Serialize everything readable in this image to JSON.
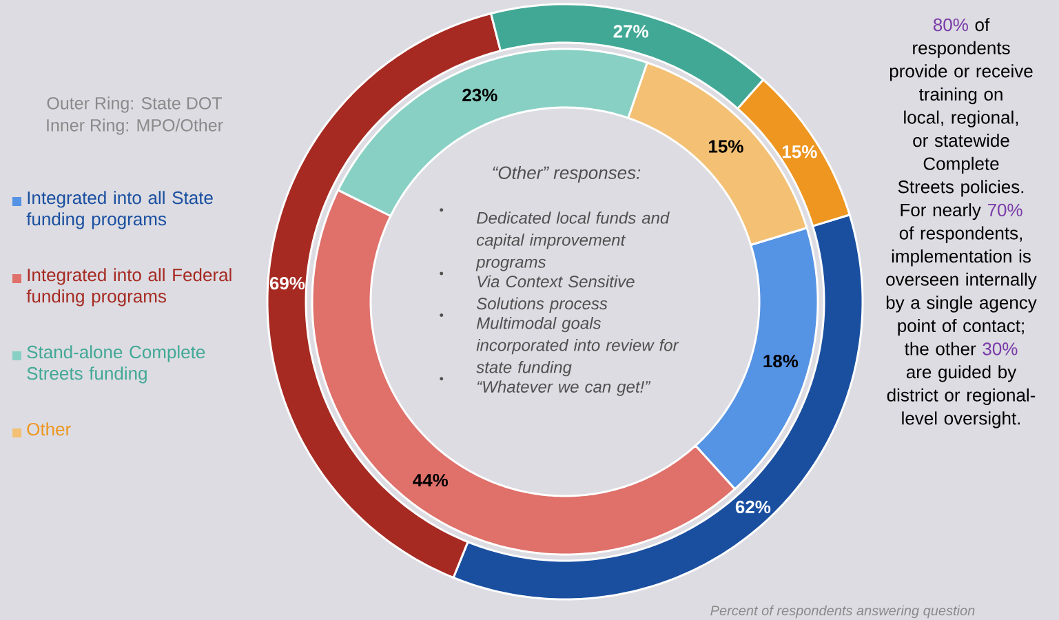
{
  "chart_data": {
    "type": "donut",
    "categories": [
      "Integrated into all State funding programs",
      "Integrated into all Federal funding programs",
      "Stand-alone Complete Streets funding",
      "Other"
    ],
    "series": [
      {
        "values": [
          62,
          69,
          27,
          15
        ],
        "colors": [
          "#1a4fa0",
          "#a62a22",
          "#42a896",
          "#ee9620"
        ],
        "value_labels": [
          "62%",
          "69%",
          "27%",
          "15%"
        ]
      },
      {
        "values": [
          18,
          44,
          23,
          15
        ],
        "colors": [
          "#5593e4",
          "#e0706a",
          "#89d0c4",
          "#f3c074"
        ],
        "value_labels": [
          "18%",
          "44%",
          "23%",
          "15%"
        ]
      }
    ],
    "legend": "left",
    "annotations": [
      "Outer Ring: State DOT",
      "Inner Ring: MPO/Other",
      "“Other” responses:",
      "Dedicated local funds and  capital improvement programs",
      "Via Context Sensitive Solutions process",
      "Multimodal goals incorporated into review for state funding",
      "“Whatever we can get!”",
      "80%",
      "of respondents provide or receive training on local, regional, or statewide Complete Streets policies.",
      "For nearly",
      "70%",
      "of respondents, implementation is overseen internally by a single agency point of contact; the other",
      "30%",
      "are guided by district or regional-level oversight.",
      "Percent of respondents answering question"
    ]
  }
}
